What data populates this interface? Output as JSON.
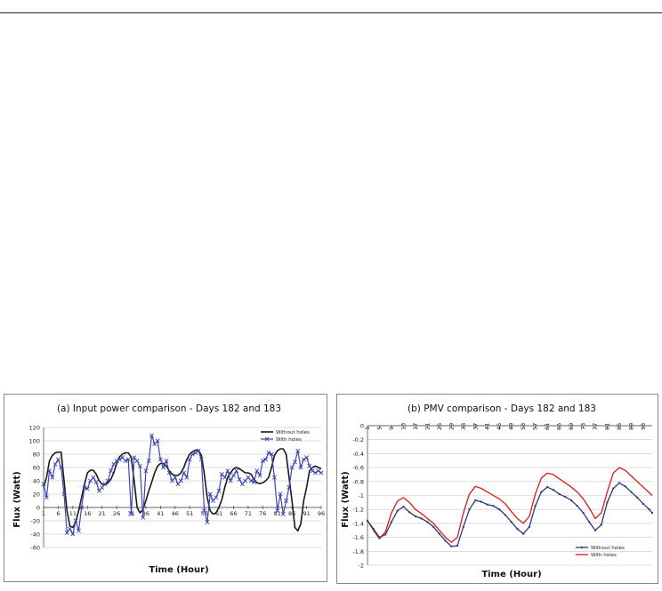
{
  "chart_data": [
    {
      "type": "line",
      "title": "(a) Input power comparison - Days 182 and 183",
      "xlabel": "Time (Hour)",
      "ylabel": "Flux (Watt)",
      "ylim": [
        -60,
        120
      ],
      "yticks": [
        -60,
        -40,
        -20,
        0,
        20,
        40,
        60,
        80,
        100,
        120
      ],
      "xlim": [
        1,
        96
      ],
      "xticks": [
        1,
        6,
        11,
        16,
        21,
        26,
        31,
        36,
        41,
        46,
        51,
        56,
        61,
        66,
        71,
        76,
        81,
        86,
        91,
        96
      ],
      "grid": true,
      "legend": "top-right",
      "colors": {
        "without": "#1a1a1a",
        "with": "#3c46b4"
      },
      "series": [
        {
          "name": "Without holes",
          "x": [
            1,
            2,
            3,
            4,
            5,
            6,
            7,
            8,
            9,
            10,
            11,
            12,
            13,
            14,
            15,
            16,
            17,
            18,
            19,
            20,
            21,
            22,
            23,
            24,
            25,
            26,
            27,
            28,
            29,
            30,
            31,
            32,
            33,
            34,
            35,
            36,
            37,
            38,
            39,
            40,
            41,
            42,
            43,
            44,
            45,
            46,
            47,
            48,
            49,
            50,
            51,
            52,
            53,
            54,
            55,
            56,
            57,
            58,
            59,
            60,
            61,
            62,
            63,
            64,
            65,
            66,
            67,
            68,
            69,
            70,
            71,
            72,
            73,
            74,
            75,
            76,
            77,
            78,
            79,
            80,
            81,
            82,
            83,
            84,
            85,
            86,
            87,
            88,
            89,
            90,
            91,
            92,
            93,
            94,
            95,
            96
          ],
          "values": [
            30,
            45,
            70,
            78,
            82,
            83,
            83,
            40,
            -5,
            -28,
            -30,
            -22,
            -5,
            15,
            35,
            52,
            56,
            56,
            50,
            40,
            35,
            34,
            37,
            42,
            52,
            66,
            76,
            80,
            82,
            82,
            75,
            40,
            0,
            -8,
            -3,
            10,
            25,
            38,
            52,
            62,
            66,
            66,
            62,
            55,
            50,
            48,
            48,
            52,
            60,
            72,
            80,
            84,
            86,
            86,
            78,
            50,
            15,
            -5,
            -10,
            -8,
            0,
            12,
            30,
            45,
            52,
            58,
            60,
            58,
            55,
            52,
            52,
            50,
            42,
            37,
            36,
            37,
            40,
            45,
            60,
            78,
            85,
            88,
            88,
            80,
            45,
            10,
            -30,
            -35,
            -25,
            10,
            30,
            55,
            60,
            62,
            60,
            58
          ]
        },
        {
          "name": "With holes",
          "x": [
            1,
            2,
            3,
            4,
            5,
            6,
            7,
            8,
            9,
            10,
            11,
            12,
            13,
            14,
            15,
            16,
            17,
            18,
            19,
            20,
            21,
            22,
            23,
            24,
            25,
            26,
            27,
            28,
            29,
            30,
            31,
            32,
            33,
            34,
            35,
            36,
            37,
            38,
            39,
            40,
            41,
            42,
            43,
            44,
            45,
            46,
            47,
            48,
            49,
            50,
            51,
            52,
            53,
            54,
            55,
            56,
            57,
            58,
            59,
            60,
            61,
            62,
            63,
            64,
            65,
            66,
            67,
            68,
            69,
            70,
            71,
            72,
            73,
            74,
            75,
            76,
            77,
            78,
            79,
            80,
            81,
            82,
            83,
            84,
            85,
            86,
            87,
            88,
            89,
            90,
            91,
            92,
            93,
            94,
            95,
            96
          ],
          "values": [
            35,
            15,
            55,
            45,
            65,
            72,
            60,
            20,
            -38,
            -32,
            -40,
            -20,
            -35,
            0,
            30,
            28,
            40,
            45,
            38,
            25,
            30,
            35,
            40,
            55,
            65,
            70,
            72,
            75,
            70,
            72,
            -10,
            75,
            70,
            62,
            -15,
            55,
            70,
            108,
            95,
            100,
            72,
            60,
            70,
            52,
            40,
            45,
            35,
            40,
            52,
            45,
            72,
            80,
            82,
            85,
            72,
            -5,
            -22,
            20,
            10,
            15,
            25,
            50,
            45,
            55,
            40,
            48,
            55,
            42,
            35,
            40,
            45,
            40,
            38,
            55,
            48,
            70,
            72,
            82,
            80,
            45,
            -5,
            20,
            -10,
            10,
            30,
            60,
            68,
            85,
            60,
            72,
            75,
            62,
            55,
            52,
            55,
            52
          ]
        }
      ]
    },
    {
      "type": "line",
      "title": "(b) PMV comparison - Days 182 and 183",
      "xlabel": "Time (Hour)",
      "ylabel": "Flux (Watt)",
      "ylim": [
        -2,
        0
      ],
      "yticks": [
        "0",
        "-0.2",
        "-0.4",
        "-0.6",
        "-0.8",
        "-1",
        "-1.2",
        "-1.4",
        "-1.6",
        "-1.8",
        "-2"
      ],
      "xlim": [
        1,
        96
      ],
      "xticks": [
        1,
        5,
        9,
        13,
        17,
        21,
        25,
        29,
        33,
        37,
        41,
        45,
        49,
        53,
        57,
        61,
        65,
        69,
        73,
        77,
        81,
        85,
        89,
        93
      ],
      "grid": true,
      "legend": "bottom-right",
      "colors": {
        "without": "#2a3a7a",
        "with": "#e01818"
      },
      "series": [
        {
          "name": "Without holes",
          "x": [
            1,
            3,
            5,
            7,
            9,
            11,
            13,
            15,
            17,
            19,
            21,
            23,
            25,
            27,
            29,
            31,
            33,
            35,
            37,
            39,
            41,
            43,
            45,
            47,
            49,
            51,
            53,
            55,
            57,
            59,
            61,
            63,
            65,
            67,
            69,
            71,
            73,
            75,
            77,
            79,
            81,
            83,
            85,
            87,
            89,
            91,
            93,
            95,
            96
          ],
          "values": [
            -1.36,
            -1.48,
            -1.6,
            -1.56,
            -1.38,
            -1.22,
            -1.16,
            -1.24,
            -1.3,
            -1.33,
            -1.38,
            -1.45,
            -1.55,
            -1.65,
            -1.73,
            -1.72,
            -1.45,
            -1.2,
            -1.07,
            -1.09,
            -1.13,
            -1.15,
            -1.2,
            -1.28,
            -1.38,
            -1.48,
            -1.55,
            -1.45,
            -1.15,
            -0.95,
            -0.88,
            -0.92,
            -0.98,
            -1.02,
            -1.07,
            -1.15,
            -1.25,
            -1.38,
            -1.5,
            -1.42,
            -1.1,
            -0.9,
            -0.82,
            -0.87,
            -0.95,
            -1.03,
            -1.12,
            -1.2,
            -1.25
          ]
        },
        {
          "name": "With holes",
          "x": [
            1,
            3,
            5,
            7,
            9,
            11,
            13,
            15,
            17,
            19,
            21,
            23,
            25,
            27,
            29,
            31,
            33,
            35,
            37,
            39,
            41,
            43,
            45,
            47,
            49,
            51,
            53,
            55,
            57,
            59,
            61,
            63,
            65,
            67,
            69,
            71,
            73,
            75,
            77,
            79,
            81,
            83,
            85,
            87,
            89,
            91,
            93,
            95,
            96
          ],
          "values": [
            -1.36,
            -1.5,
            -1.62,
            -1.52,
            -1.25,
            -1.08,
            -1.03,
            -1.1,
            -1.2,
            -1.26,
            -1.33,
            -1.4,
            -1.5,
            -1.6,
            -1.67,
            -1.6,
            -1.25,
            -0.98,
            -0.87,
            -0.9,
            -0.95,
            -1,
            -1.05,
            -1.12,
            -1.23,
            -1.33,
            -1.4,
            -1.3,
            -0.98,
            -0.75,
            -0.68,
            -0.7,
            -0.76,
            -0.82,
            -0.88,
            -0.95,
            -1.05,
            -1.18,
            -1.33,
            -1.25,
            -0.95,
            -0.68,
            -0.6,
            -0.64,
            -0.72,
            -0.8,
            -0.88,
            -0.96,
            -1.0
          ]
        }
      ]
    }
  ]
}
